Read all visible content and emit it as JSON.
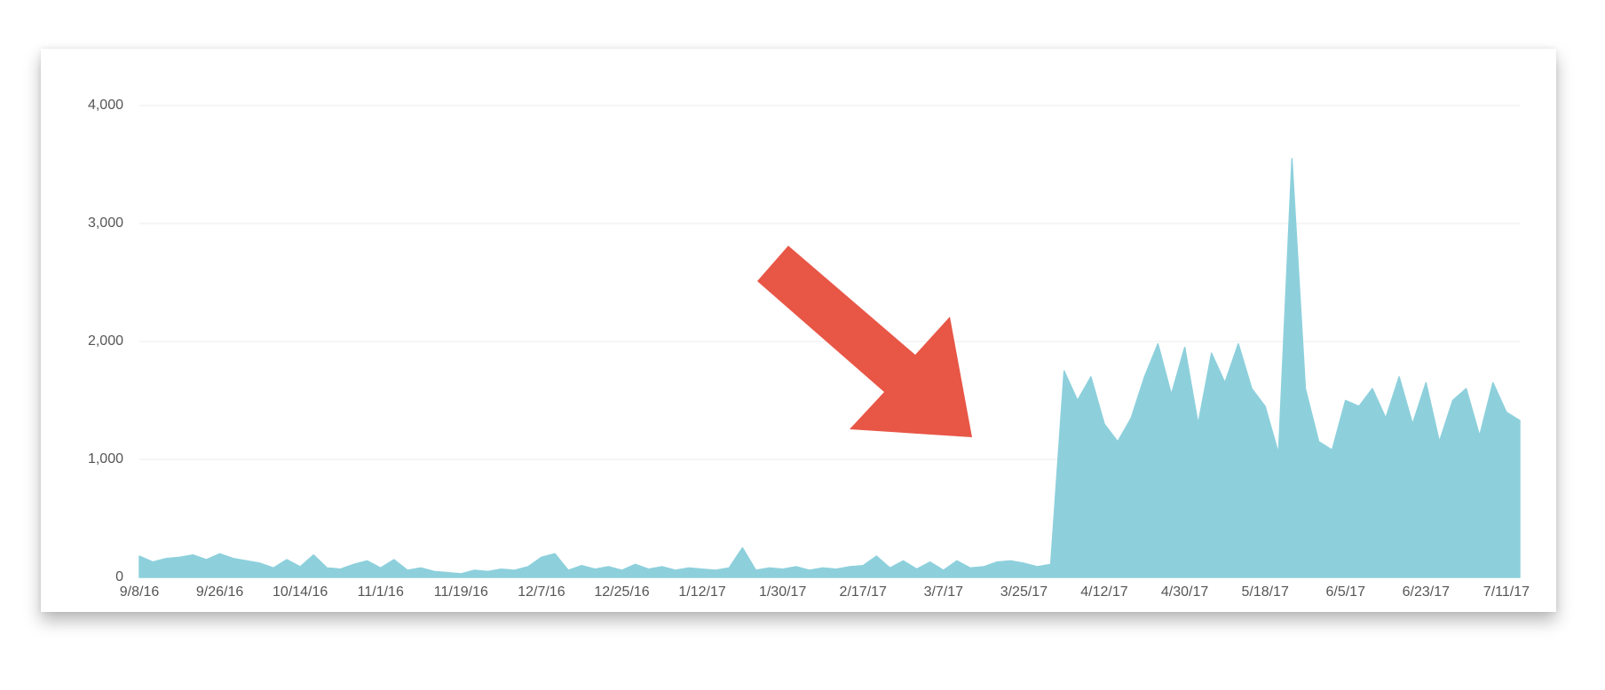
{
  "chart_data": {
    "type": "area",
    "categories": [
      "9/8/16",
      null,
      null,
      null,
      null,
      null,
      "9/26/16",
      null,
      null,
      null,
      null,
      null,
      "10/14/16",
      null,
      null,
      null,
      null,
      null,
      "11/1/16",
      null,
      null,
      null,
      null,
      null,
      "11/19/16",
      null,
      null,
      null,
      null,
      null,
      "12/7/16",
      null,
      null,
      null,
      null,
      null,
      "12/25/16",
      null,
      null,
      null,
      null,
      null,
      "1/12/17",
      null,
      null,
      null,
      null,
      null,
      "1/30/17",
      null,
      null,
      null,
      null,
      null,
      "2/17/17",
      null,
      null,
      null,
      null,
      null,
      "3/7/17",
      null,
      null,
      null,
      null,
      null,
      "3/25/17",
      null,
      null,
      null,
      null,
      null,
      "4/12/17",
      null,
      null,
      null,
      null,
      null,
      "4/30/17",
      null,
      null,
      null,
      null,
      null,
      "5/18/17",
      null,
      null,
      null,
      null,
      null,
      "6/5/17",
      null,
      null,
      null,
      null,
      null,
      "6/23/17",
      null,
      null,
      null,
      null,
      null,
      "7/11/17",
      null
    ],
    "values": [
      180,
      130,
      160,
      170,
      190,
      150,
      200,
      160,
      140,
      120,
      80,
      150,
      90,
      190,
      80,
      70,
      110,
      140,
      80,
      150,
      60,
      80,
      50,
      40,
      30,
      60,
      50,
      70,
      60,
      90,
      170,
      200,
      60,
      100,
      70,
      90,
      60,
      110,
      70,
      90,
      60,
      80,
      70,
      60,
      80,
      250,
      60,
      80,
      70,
      90,
      60,
      80,
      70,
      90,
      100,
      180,
      80,
      140,
      70,
      130,
      60,
      140,
      80,
      90,
      130,
      140,
      120,
      90,
      110,
      1750,
      1500,
      1700,
      1300,
      1150,
      1350,
      1700,
      1980,
      1550,
      1950,
      1300,
      1900,
      1650,
      1980,
      1600,
      1450,
      1050,
      3550,
      1600,
      1150,
      1080,
      1500,
      1450,
      1600,
      1350,
      1700,
      1300,
      1650,
      1150,
      1500,
      1600,
      1200,
      1650,
      1400,
      1330
    ],
    "color": "#8dd0dc",
    "ylim": [
      0,
      4000
    ],
    "yticks": [
      {
        "value": 0,
        "label": "0"
      },
      {
        "value": 1000,
        "label": "1,000"
      },
      {
        "value": 2000,
        "label": "2,000"
      },
      {
        "value": 3000,
        "label": "3,000"
      },
      {
        "value": 4000,
        "label": "4,000"
      }
    ],
    "grid": true
  }
}
